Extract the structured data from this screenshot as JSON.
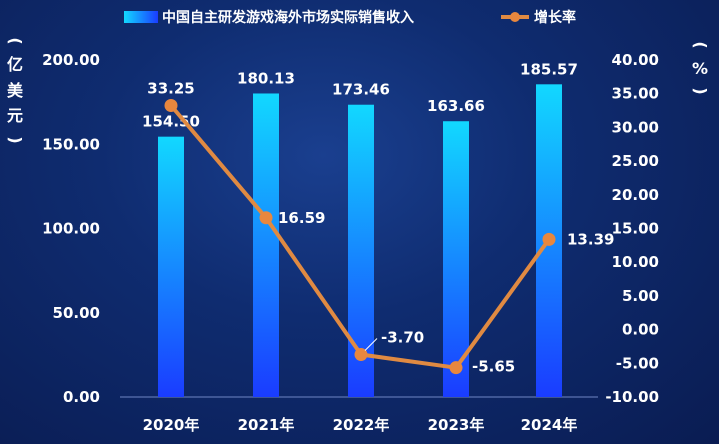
{
  "chart_data": {
    "type": "bar",
    "categories": [
      "2020年",
      "2021年",
      "2022年",
      "2023年",
      "2024年"
    ],
    "series": [
      {
        "name": "中国自主研发游戏海外市场实际销售收入",
        "type": "bar",
        "axis": "left",
        "values": [
          154.5,
          180.13,
          173.46,
          163.66,
          185.57
        ],
        "labels": [
          "154.50",
          "180.13",
          "173.46",
          "163.66",
          "185.57"
        ]
      },
      {
        "name": "增长率",
        "type": "line",
        "axis": "right",
        "values": [
          33.25,
          16.59,
          -3.7,
          -5.65,
          13.39
        ],
        "labels": [
          "33.25",
          "16.59",
          "-3.70",
          "-5.65",
          "13.39"
        ]
      }
    ],
    "y_left": {
      "label_chars": [
        "(",
        "亿",
        "美",
        "元",
        ")"
      ],
      "ylim": [
        0,
        200
      ],
      "ticks": [
        "0.00",
        "50.00",
        "100.00",
        "150.00",
        "200.00"
      ]
    },
    "y_right": {
      "label_chars": [
        "(",
        "%",
        ")"
      ],
      "ylim": [
        -10,
        40
      ],
      "ticks": [
        "-10.00",
        "-5.00",
        "0.00",
        "5.00",
        "10.00",
        "15.00",
        "20.00",
        "25.00",
        "30.00",
        "35.00",
        "40.00"
      ]
    },
    "legend_position": "top-center",
    "grid": false,
    "colors": {
      "bar_top": "#12d8ff",
      "bar_bottom": "#1a3cff",
      "line": "#e08a42",
      "marker": "#e8873e"
    }
  }
}
